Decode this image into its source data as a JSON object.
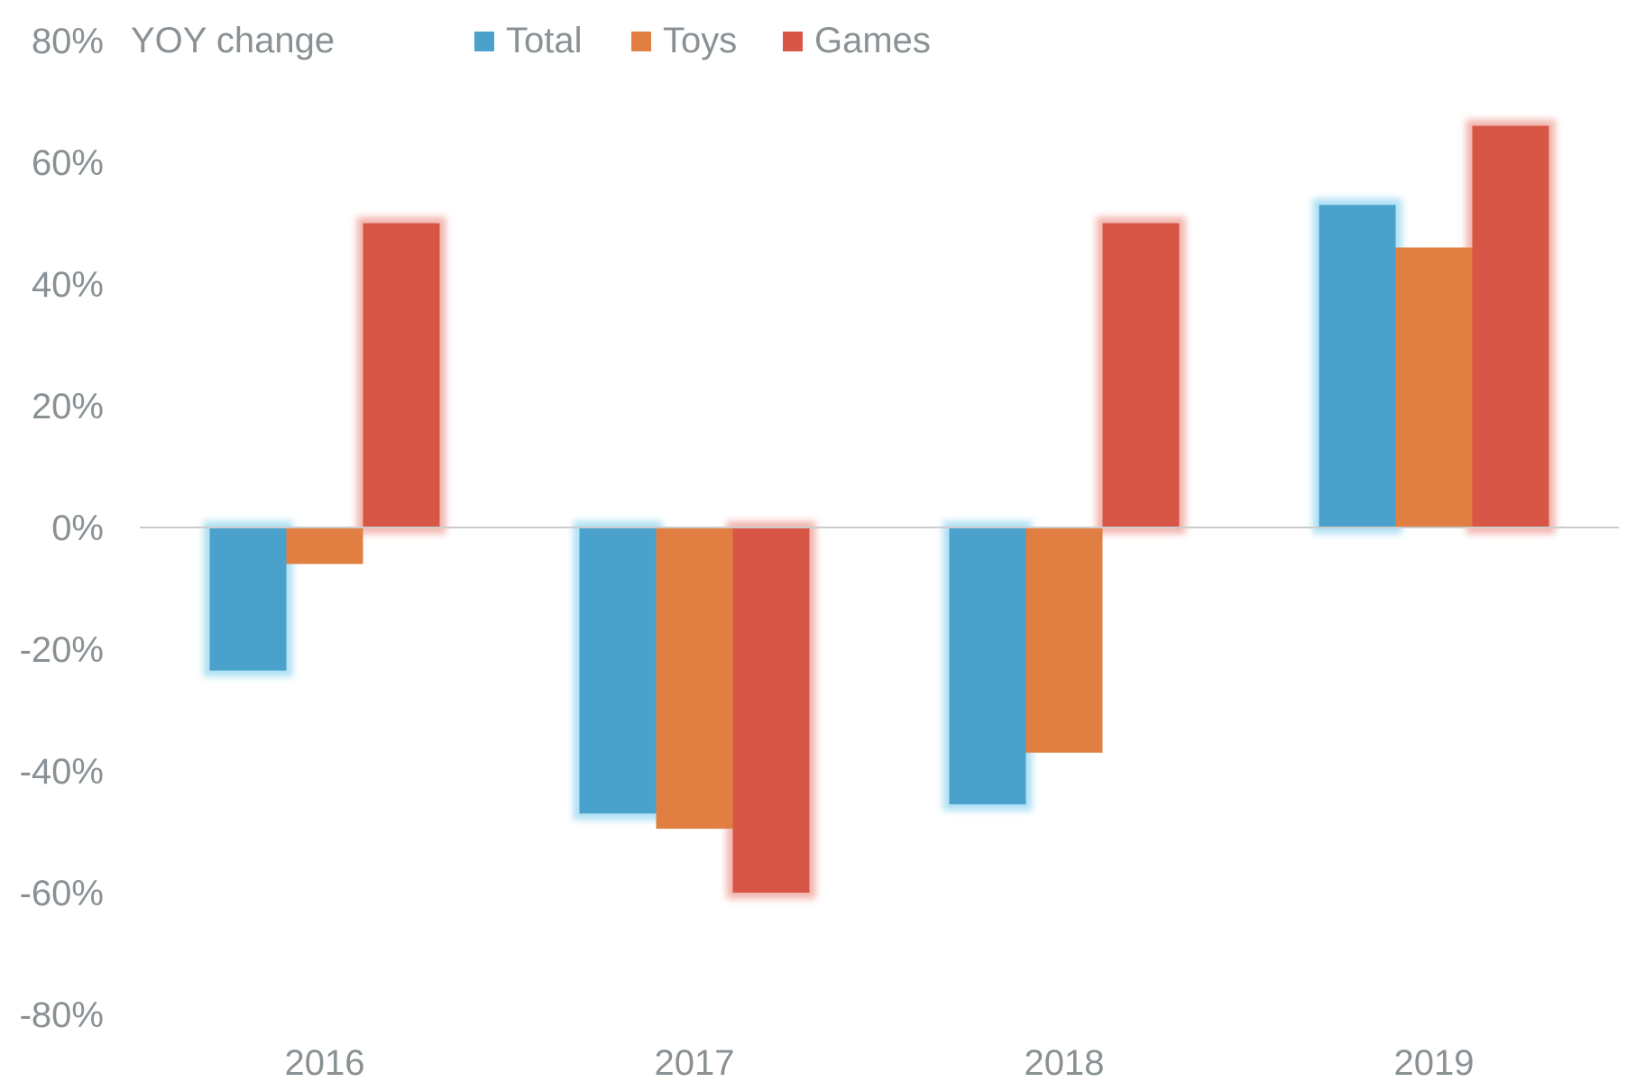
{
  "chart_data": {
    "type": "bar",
    "title": "YOY change",
    "xlabel": "",
    "ylabel": "",
    "categories": [
      "2016",
      "2017",
      "2018",
      "2019"
    ],
    "series": [
      {
        "name": "Total",
        "color": "#4aa2cc",
        "values": [
          -23.5,
          -47,
          -45.5,
          53
        ]
      },
      {
        "name": "Toys",
        "color": "#e07f41",
        "values": [
          -6,
          -49.5,
          -37,
          46
        ]
      },
      {
        "name": "Games",
        "color": "#d85646",
        "values": [
          50,
          -60,
          50,
          66
        ]
      }
    ],
    "ylim": [
      -80,
      80
    ],
    "yticks": [
      -80,
      -60,
      -40,
      -20,
      0,
      20,
      40,
      60,
      80
    ],
    "ytick_labels": [
      "-80%",
      "-60%",
      "-40%",
      "-20%",
      "0%",
      "20%",
      "40%",
      "60%",
      "80%"
    ],
    "grid": false,
    "legend_position": "top",
    "highlighted_series": [
      "Total",
      "Games"
    ],
    "highlight_colors": {
      "Total": "#aee0f4",
      "Games": "#f2b5ad"
    },
    "axis_color": "#cccccc"
  }
}
